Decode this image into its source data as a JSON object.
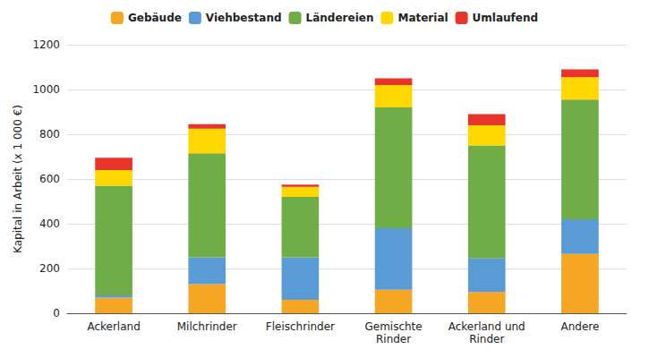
{
  "chart_data": {
    "type": "bar",
    "stacked": true,
    "ylabel": "Kapital in Arbeit (x 1 000 €)",
    "categories": [
      "Ackerland",
      "Milchrinder",
      "Fleischrinder",
      "Gemischte\nRinder",
      "Ackerland und\nRinder",
      "Andere"
    ],
    "series": [
      {
        "name": "Gebäude",
        "color": "#F5A623",
        "values": [
          70,
          130,
          60,
          105,
          95,
          265
        ]
      },
      {
        "name": "Viehbestand",
        "color": "#5B9BD5",
        "values": [
          10,
          120,
          190,
          275,
          150,
          155
        ]
      },
      {
        "name": "Ländereien",
        "color": "#70AD47",
        "values": [
          490,
          465,
          270,
          540,
          505,
          535
        ]
      },
      {
        "name": "Material",
        "color": "#FFD700",
        "values": [
          70,
          110,
          45,
          100,
          90,
          100
        ]
      },
      {
        "name": "Umlaufend",
        "color": "#E8342A",
        "values": [
          55,
          20,
          10,
          30,
          50,
          35
        ]
      }
    ],
    "ylim": [
      0,
      1200
    ],
    "yticks": [
      0,
      200,
      400,
      600,
      800,
      1000,
      1200
    ],
    "grid": true,
    "legend": "top"
  }
}
